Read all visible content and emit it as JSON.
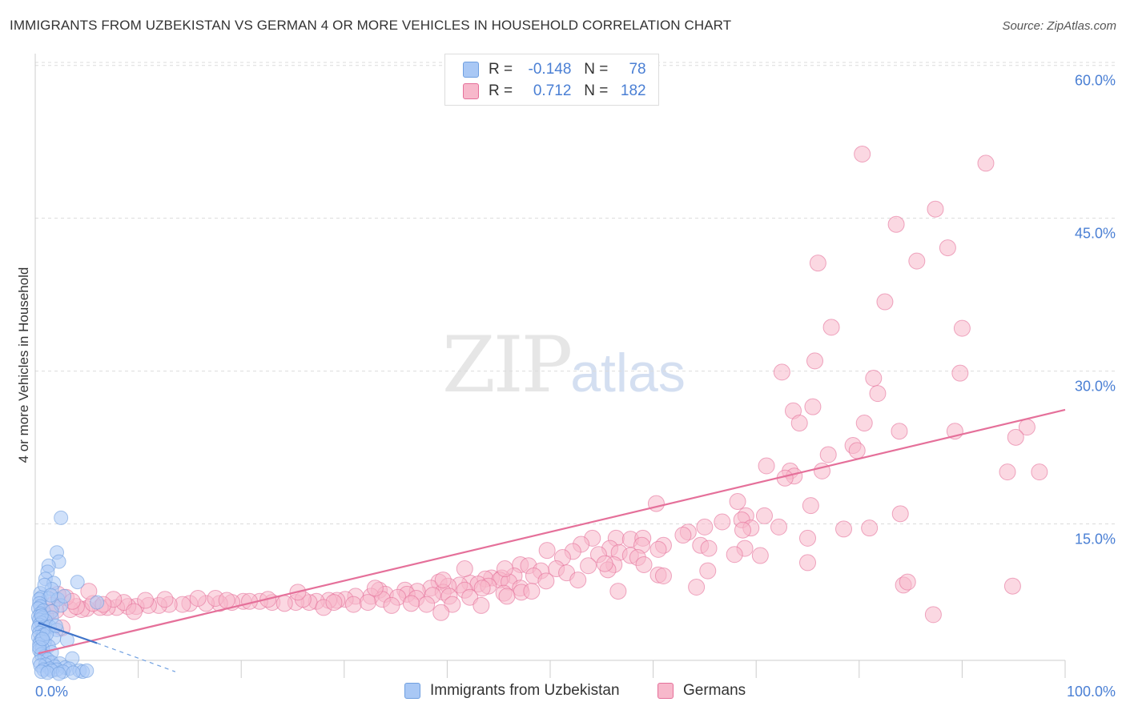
{
  "title": "IMMIGRANTS FROM UZBEKISTAN VS GERMAN 4 OR MORE VEHICLES IN HOUSEHOLD CORRELATION CHART",
  "source": "Source: ZipAtlas.com",
  "watermark_zip": "ZIP",
  "watermark_atlas": "atlas",
  "legend": {
    "series1": {
      "r_label": "R =",
      "r_value": "-0.148",
      "n_label": "N =",
      "n_value": "78",
      "color": "#a9c8f5"
    },
    "series2": {
      "r_label": "R =",
      "r_value": "0.712",
      "n_label": "N =",
      "n_value": "182",
      "color": "#f7b8cb"
    }
  },
  "bottom_legend": {
    "series1": "Immigrants from Uzbekistan",
    "series2": "Germans"
  },
  "chart_data": {
    "type": "scatter",
    "ylabel": "4 or more Vehicles in Household",
    "xlim": [
      0,
      100
    ],
    "ylim": [
      0,
      62
    ],
    "x_tick_labels": [
      "0.0%",
      "100.0%"
    ],
    "y_ticks": [
      15,
      30,
      45,
      60
    ],
    "y_tick_labels": [
      "15.0%",
      "30.0%",
      "45.0%",
      "60.0%"
    ],
    "grid": true,
    "series": [
      {
        "name": "Immigrants from Uzbekistan",
        "color": "#6f9fe0",
        "fill": "#a9c8f5",
        "trend": {
          "x": [
            0.3,
            6.0
          ],
          "y": [
            5.3,
            3.3
          ],
          "dashed_to": [
            13.6,
            0.5
          ]
        },
        "points": [
          [
            2.5,
            15.6
          ],
          [
            2.1,
            12.2
          ],
          [
            2.3,
            11.3
          ],
          [
            1.3,
            10.9
          ],
          [
            1.2,
            10.3
          ],
          [
            1.0,
            9.6
          ],
          [
            4.1,
            9.3
          ],
          [
            1.8,
            9.2
          ],
          [
            1.6,
            8.6
          ],
          [
            0.5,
            8.2
          ],
          [
            0.6,
            7.8
          ],
          [
            1.3,
            7.7
          ],
          [
            0.4,
            7.6
          ],
          [
            2.2,
            7.6
          ],
          [
            0.4,
            7.2
          ],
          [
            2.5,
            7.0
          ],
          [
            0.5,
            6.9
          ],
          [
            6.0,
            7.3
          ],
          [
            0.3,
            6.7
          ],
          [
            0.8,
            6.5
          ],
          [
            1.6,
            6.4
          ],
          [
            0.5,
            6.2
          ],
          [
            0.3,
            5.9
          ],
          [
            0.7,
            5.8
          ],
          [
            1.6,
            5.8
          ],
          [
            0.4,
            5.6
          ],
          [
            1.0,
            5.5
          ],
          [
            0.6,
            5.3
          ],
          [
            0.4,
            5.1
          ],
          [
            0.9,
            4.9
          ],
          [
            1.4,
            4.9
          ],
          [
            0.3,
            4.8
          ],
          [
            2.1,
            4.6
          ],
          [
            0.7,
            4.5
          ],
          [
            0.4,
            4.3
          ],
          [
            0.8,
            4.1
          ],
          [
            0.3,
            3.9
          ],
          [
            1.8,
            3.8
          ],
          [
            3.1,
            3.6
          ],
          [
            0.5,
            3.5
          ],
          [
            0.9,
            3.4
          ],
          [
            0.4,
            3.2
          ],
          [
            1.3,
            3.0
          ],
          [
            0.7,
            2.8
          ],
          [
            0.4,
            2.6
          ],
          [
            1.6,
            2.4
          ],
          [
            0.6,
            2.2
          ],
          [
            0.9,
            2.0
          ],
          [
            3.6,
            1.8
          ],
          [
            1.2,
            1.7
          ],
          [
            0.4,
            1.5
          ],
          [
            1.6,
            1.4
          ],
          [
            2.4,
            1.3
          ],
          [
            1.0,
            1.2
          ],
          [
            0.5,
            1.1
          ],
          [
            1.9,
            1.0
          ],
          [
            2.9,
            0.9
          ],
          [
            1.4,
            0.8
          ],
          [
            3.3,
            0.8
          ],
          [
            0.8,
            0.7
          ],
          [
            2.1,
            0.7
          ],
          [
            4.3,
            0.6
          ],
          [
            1.6,
            0.6
          ],
          [
            2.7,
            0.5
          ],
          [
            4.6,
            0.5
          ],
          [
            0.6,
            0.5
          ],
          [
            1.2,
            0.4
          ],
          [
            3.7,
            0.4
          ],
          [
            2.3,
            0.3
          ],
          [
            5.0,
            0.6
          ],
          [
            0.9,
            9.0
          ],
          [
            1.5,
            8.0
          ],
          [
            0.6,
            6.0
          ],
          [
            2.8,
            7.9
          ],
          [
            1.1,
            4.2
          ],
          [
            0.4,
            2.9
          ],
          [
            2.0,
            5.0
          ],
          [
            0.7,
            3.7
          ]
        ]
      },
      {
        "name": "Germans",
        "color": "#e5709a",
        "fill": "#f7b8cb",
        "trend": {
          "x": [
            0.3,
            100.0
          ],
          "y": [
            2.3,
            26.2
          ]
        },
        "points": [
          [
            80.3,
            51.3
          ],
          [
            92.3,
            50.4
          ],
          [
            87.4,
            45.9
          ],
          [
            83.6,
            44.4
          ],
          [
            88.6,
            42.1
          ],
          [
            76.0,
            40.6
          ],
          [
            85.6,
            40.8
          ],
          [
            82.5,
            36.8
          ],
          [
            77.3,
            34.3
          ],
          [
            90.0,
            34.2
          ],
          [
            75.7,
            31.0
          ],
          [
            72.5,
            29.9
          ],
          [
            81.4,
            29.3
          ],
          [
            89.8,
            29.8
          ],
          [
            81.8,
            27.8
          ],
          [
            73.6,
            26.1
          ],
          [
            75.5,
            26.5
          ],
          [
            74.2,
            24.9
          ],
          [
            80.5,
            24.9
          ],
          [
            83.9,
            24.1
          ],
          [
            89.3,
            24.1
          ],
          [
            96.3,
            24.5
          ],
          [
            95.2,
            23.5
          ],
          [
            79.4,
            22.7
          ],
          [
            79.8,
            22.2
          ],
          [
            77.0,
            21.8
          ],
          [
            71.0,
            20.7
          ],
          [
            76.4,
            20.2
          ],
          [
            73.3,
            20.2
          ],
          [
            73.7,
            19.7
          ],
          [
            94.4,
            20.1
          ],
          [
            97.5,
            20.1
          ],
          [
            72.8,
            19.5
          ],
          [
            60.3,
            17.0
          ],
          [
            68.2,
            17.2
          ],
          [
            75.3,
            16.8
          ],
          [
            84.0,
            16.0
          ],
          [
            70.8,
            15.8
          ],
          [
            69.0,
            15.8
          ],
          [
            68.6,
            15.4
          ],
          [
            66.7,
            15.2
          ],
          [
            65.0,
            14.7
          ],
          [
            69.5,
            14.6
          ],
          [
            68.7,
            14.4
          ],
          [
            72.2,
            14.7
          ],
          [
            63.4,
            14.2
          ],
          [
            78.5,
            14.5
          ],
          [
            56.4,
            13.6
          ],
          [
            54.1,
            13.6
          ],
          [
            62.9,
            13.9
          ],
          [
            57.8,
            13.5
          ],
          [
            75.0,
            13.6
          ],
          [
            59.0,
            13.6
          ],
          [
            53.0,
            13.0
          ],
          [
            58.9,
            12.9
          ],
          [
            61.0,
            12.9
          ],
          [
            64.6,
            12.9
          ],
          [
            55.8,
            12.6
          ],
          [
            60.5,
            12.5
          ],
          [
            65.4,
            12.6
          ],
          [
            49.7,
            12.4
          ],
          [
            52.2,
            12.3
          ],
          [
            68.9,
            12.6
          ],
          [
            56.7,
            12.2
          ],
          [
            67.9,
            12.0
          ],
          [
            54.7,
            12.0
          ],
          [
            57.8,
            11.9
          ],
          [
            51.2,
            11.7
          ],
          [
            58.5,
            11.7
          ],
          [
            47.1,
            11.0
          ],
          [
            56.2,
            11.0
          ],
          [
            59.1,
            11.0
          ],
          [
            47.9,
            10.9
          ],
          [
            50.6,
            10.6
          ],
          [
            55.6,
            10.5
          ],
          [
            49.1,
            10.4
          ],
          [
            65.3,
            10.4
          ],
          [
            51.6,
            10.2
          ],
          [
            60.5,
            10.0
          ],
          [
            46.5,
            9.9
          ],
          [
            48.4,
            9.9
          ],
          [
            61.0,
            9.9
          ],
          [
            44.3,
            9.7
          ],
          [
            45.3,
            9.7
          ],
          [
            43.7,
            9.6
          ],
          [
            45.1,
            9.5
          ],
          [
            52.7,
            9.5
          ],
          [
            49.6,
            9.4
          ],
          [
            46.0,
            9.3
          ],
          [
            39.2,
            9.3
          ],
          [
            42.2,
            9.2
          ],
          [
            43.0,
            9.1
          ],
          [
            41.2,
            9.0
          ],
          [
            40.1,
            8.9
          ],
          [
            44.0,
            8.9
          ],
          [
            38.4,
            8.7
          ],
          [
            47.1,
            8.7
          ],
          [
            33.4,
            8.5
          ],
          [
            35.9,
            8.5
          ],
          [
            41.7,
            8.5
          ],
          [
            37.1,
            8.4
          ],
          [
            39.6,
            8.3
          ],
          [
            47.2,
            8.3
          ],
          [
            45.5,
            8.2
          ],
          [
            34.0,
            8.1
          ],
          [
            36.1,
            8.1
          ],
          [
            38.6,
            8.0
          ],
          [
            40.2,
            7.9
          ],
          [
            31.1,
            7.9
          ],
          [
            32.6,
            7.9
          ],
          [
            35.2,
            7.8
          ],
          [
            42.2,
            7.8
          ],
          [
            37.0,
            7.7
          ],
          [
            33.7,
            7.6
          ],
          [
            30.1,
            7.6
          ],
          [
            29.3,
            7.5
          ],
          [
            28.5,
            7.5
          ],
          [
            27.3,
            7.4
          ],
          [
            26.6,
            7.3
          ],
          [
            25.3,
            7.3
          ],
          [
            23.0,
            7.3
          ],
          [
            20.2,
            7.4
          ],
          [
            19.1,
            7.3
          ],
          [
            17.9,
            7.2
          ],
          [
            16.6,
            7.2
          ],
          [
            15.0,
            7.2
          ],
          [
            14.3,
            7.1
          ],
          [
            13.0,
            7.1
          ],
          [
            12.0,
            7.0
          ],
          [
            11.0,
            7.0
          ],
          [
            9.8,
            6.9
          ],
          [
            9.0,
            6.9
          ],
          [
            7.9,
            6.8
          ],
          [
            7.0,
            6.8
          ],
          [
            6.3,
            6.8
          ],
          [
            5.0,
            6.7
          ],
          [
            4.5,
            6.6
          ],
          [
            3.4,
            6.6
          ],
          [
            2.0,
            6.5
          ],
          [
            1.4,
            6.4
          ],
          [
            21.8,
            7.4
          ],
          [
            24.2,
            7.2
          ],
          [
            28.0,
            6.8
          ],
          [
            30.9,
            7.1
          ],
          [
            34.6,
            7.0
          ],
          [
            38.0,
            7.1
          ],
          [
            40.5,
            7.1
          ],
          [
            43.3,
            7.0
          ],
          [
            5.6,
            7.2
          ],
          [
            8.6,
            7.3
          ],
          [
            10.7,
            7.5
          ],
          [
            12.6,
            7.6
          ],
          [
            15.8,
            7.7
          ],
          [
            17.5,
            7.7
          ],
          [
            18.6,
            7.5
          ],
          [
            20.8,
            7.4
          ],
          [
            22.6,
            7.6
          ],
          [
            26.0,
            7.6
          ],
          [
            29.0,
            7.3
          ],
          [
            32.3,
            7.3
          ],
          [
            36.5,
            7.2
          ],
          [
            39.4,
            6.3
          ],
          [
            45.8,
            7.9
          ],
          [
            7.6,
            7.6
          ],
          [
            9.6,
            6.4
          ],
          [
            4.0,
            6.9
          ],
          [
            6.6,
            7.1
          ],
          [
            3.0,
            7.8
          ],
          [
            1.0,
            6.0
          ],
          [
            2.2,
            8.1
          ],
          [
            5.2,
            8.4
          ],
          [
            3.6,
            7.4
          ],
          [
            1.6,
            7.0
          ],
          [
            2.6,
            4.8
          ],
          [
            25.5,
            8.3
          ],
          [
            33.0,
            8.7
          ],
          [
            41.7,
            10.6
          ],
          [
            53.7,
            10.9
          ],
          [
            55.3,
            11.1
          ],
          [
            56.6,
            8.4
          ],
          [
            64.2,
            8.8
          ],
          [
            81.0,
            14.6
          ],
          [
            75.0,
            11.2
          ],
          [
            70.4,
            11.9
          ],
          [
            87.2,
            6.1
          ],
          [
            84.3,
            9.0
          ],
          [
            84.7,
            9.3
          ],
          [
            94.9,
            8.9
          ],
          [
            39.6,
            9.5
          ],
          [
            48.2,
            8.4
          ],
          [
            45.6,
            10.6
          ],
          [
            43.4,
            8.7
          ]
        ]
      }
    ]
  }
}
